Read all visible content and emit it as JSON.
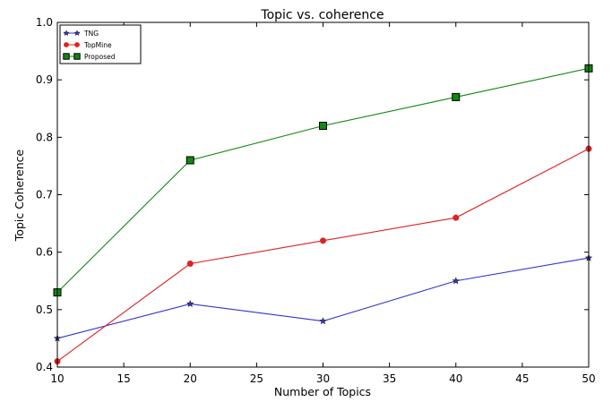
{
  "chart_data": {
    "type": "line",
    "title": "Topic vs. coherence",
    "xlabel": "Number of Topics",
    "ylabel": "Topic Coherence",
    "xlim": [
      10,
      50
    ],
    "ylim": [
      0.4,
      1.0
    ],
    "x_ticks": [
      10,
      15,
      20,
      25,
      30,
      35,
      40,
      45,
      50
    ],
    "y_ticks": [
      "0.4",
      "0.5",
      "0.6",
      "0.7",
      "0.8",
      "0.9",
      "1.0"
    ],
    "grid": false,
    "legend_position": "top-left",
    "series": [
      {
        "name": "TNG",
        "color": "#3333cc",
        "marker": "star",
        "x": [
          10,
          20,
          30,
          40,
          50
        ],
        "values": [
          0.45,
          0.51,
          0.48,
          0.55,
          0.59
        ]
      },
      {
        "name": "TopMine",
        "color": "#dd2222",
        "marker": "circle",
        "x": [
          10,
          20,
          30,
          40,
          50
        ],
        "values": [
          0.41,
          0.58,
          0.62,
          0.66,
          0.78
        ]
      },
      {
        "name": "Proposed",
        "color": "#118811",
        "marker": "square",
        "x": [
          10,
          20,
          30,
          40,
          50
        ],
        "values": [
          0.53,
          0.76,
          0.82,
          0.87,
          0.92
        ]
      }
    ]
  }
}
